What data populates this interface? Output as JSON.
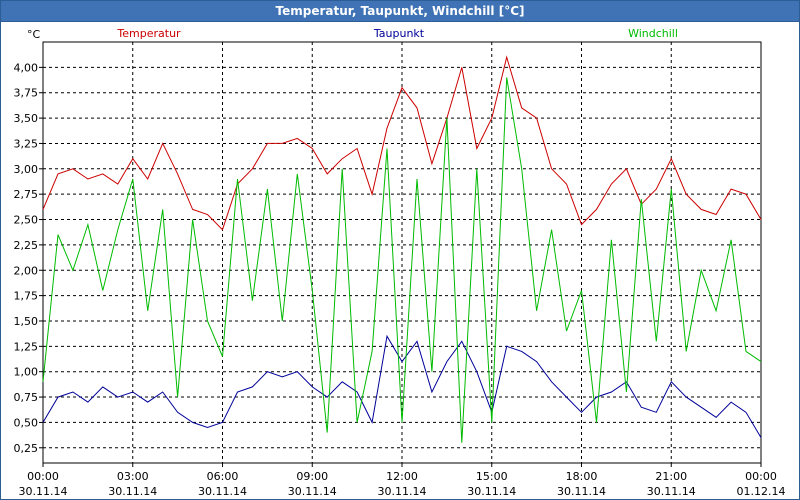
{
  "window": {
    "title": "Temperatur, Taupunkt, Windchill [°C]"
  },
  "chart_data": {
    "type": "line",
    "title": "Temperatur, Taupunkt, Windchill [°C]",
    "ylabel": "°C",
    "xlabel": "",
    "ylim": [
      0.1,
      4.25
    ],
    "xlim_hours": [
      0,
      24
    ],
    "grid": true,
    "legend": "top, horizontal",
    "y_ticks": [
      "0,25",
      "0,50",
      "0,75",
      "1,00",
      "1,25",
      "1,50",
      "1,75",
      "2,00",
      "2,25",
      "2,50",
      "2,75",
      "3,00",
      "3,25",
      "3,50",
      "3,75",
      "4,00"
    ],
    "x_ticks": [
      {
        "time": "00:00",
        "date": "30.11.14"
      },
      {
        "time": "03:00",
        "date": "30.11.14"
      },
      {
        "time": "06:00",
        "date": "30.11.14"
      },
      {
        "time": "09:00",
        "date": "30.11.14"
      },
      {
        "time": "12:00",
        "date": "30.11.14"
      },
      {
        "time": "15:00",
        "date": "30.11.14"
      },
      {
        "time": "18:00",
        "date": "30.11.14"
      },
      {
        "time": "21:00",
        "date": "30.11.14"
      },
      {
        "time": "00:00",
        "date": "01.12.14"
      }
    ],
    "series": [
      {
        "name": "Temperatur",
        "color": "#cc0000",
        "x": [
          0,
          0.5,
          1,
          1.5,
          2,
          2.5,
          3,
          3.5,
          4,
          4.5,
          5,
          5.5,
          6,
          6.5,
          7,
          7.5,
          8,
          8.5,
          9,
          9.5,
          10,
          10.5,
          11,
          11.5,
          12,
          12.5,
          13,
          13.5,
          14,
          14.5,
          15,
          15.5,
          16,
          16.5,
          17,
          17.5,
          18,
          18.5,
          19,
          19.5,
          20,
          20.5,
          21,
          21.5,
          22,
          22.5,
          23,
          23.5,
          24
        ],
        "values": [
          2.6,
          2.95,
          3.0,
          2.9,
          2.95,
          2.85,
          3.1,
          2.9,
          3.25,
          2.95,
          2.6,
          2.55,
          2.4,
          2.85,
          3.0,
          3.25,
          3.25,
          3.3,
          3.2,
          2.95,
          3.1,
          3.2,
          2.75,
          3.4,
          3.8,
          3.6,
          3.05,
          3.5,
          4.0,
          3.2,
          3.5,
          4.1,
          3.6,
          3.5,
          3.0,
          2.85,
          2.45,
          2.6,
          2.85,
          3.0,
          2.65,
          2.8,
          3.1,
          2.75,
          2.6,
          2.55,
          2.8,
          2.75,
          2.5
        ]
      },
      {
        "name": "Taupunkt",
        "color": "#000099",
        "x": [
          0,
          0.5,
          1,
          1.5,
          2,
          2.5,
          3,
          3.5,
          4,
          4.5,
          5,
          5.5,
          6,
          6.5,
          7,
          7.5,
          8,
          8.5,
          9,
          9.5,
          10,
          10.5,
          11,
          11.5,
          12,
          12.5,
          13,
          13.5,
          14,
          14.5,
          15,
          15.5,
          16,
          16.5,
          17,
          17.5,
          18,
          18.5,
          19,
          19.5,
          20,
          20.5,
          21,
          21.5,
          22,
          22.5,
          23,
          23.5,
          24
        ],
        "values": [
          0.5,
          0.75,
          0.8,
          0.7,
          0.85,
          0.75,
          0.8,
          0.7,
          0.8,
          0.6,
          0.5,
          0.45,
          0.5,
          0.8,
          0.85,
          1.0,
          0.95,
          1.0,
          0.85,
          0.75,
          0.9,
          0.8,
          0.5,
          1.35,
          1.1,
          1.3,
          0.8,
          1.1,
          1.3,
          1.0,
          0.6,
          1.25,
          1.2,
          1.1,
          0.9,
          0.75,
          0.6,
          0.75,
          0.8,
          0.9,
          0.65,
          0.6,
          0.9,
          0.75,
          0.65,
          0.55,
          0.7,
          0.6,
          0.35
        ]
      },
      {
        "name": "Windchill",
        "color": "#00bb00",
        "x": [
          0,
          0.5,
          1,
          1.5,
          2,
          2.5,
          3,
          3.5,
          4,
          4.5,
          5,
          5.5,
          6,
          6.5,
          7,
          7.5,
          8,
          8.5,
          9,
          9.5,
          10,
          10.5,
          11,
          11.5,
          12,
          12.5,
          13,
          13.5,
          14,
          14.5,
          15,
          15.5,
          16,
          16.5,
          17,
          17.5,
          18,
          18.5,
          19,
          19.5,
          20,
          20.5,
          21,
          21.5,
          22,
          22.5,
          23,
          23.5,
          24
        ],
        "values": [
          0.9,
          2.35,
          2.0,
          2.45,
          1.8,
          2.4,
          2.9,
          1.6,
          2.6,
          0.75,
          2.5,
          1.5,
          1.15,
          2.9,
          1.7,
          2.8,
          1.5,
          2.95,
          1.8,
          0.4,
          3.0,
          0.5,
          1.2,
          3.2,
          0.5,
          2.9,
          1.0,
          3.5,
          0.3,
          3.0,
          0.5,
          3.9,
          3.0,
          1.6,
          2.4,
          1.4,
          1.8,
          0.5,
          2.3,
          0.8,
          2.7,
          1.3,
          2.8,
          1.2,
          2.0,
          1.6,
          2.3,
          1.2,
          1.1
        ]
      }
    ]
  }
}
